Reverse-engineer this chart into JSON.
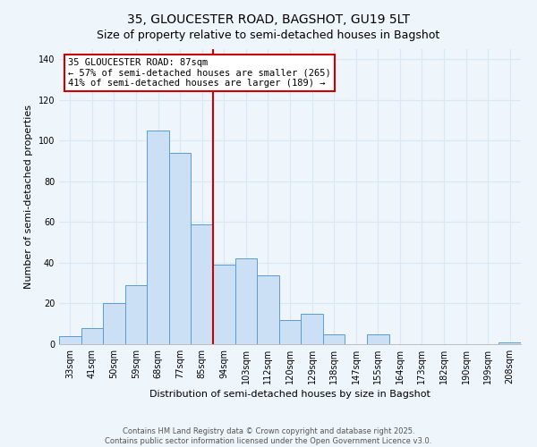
{
  "title": "35, GLOUCESTER ROAD, BAGSHOT, GU19 5LT",
  "subtitle": "Size of property relative to semi-detached houses in Bagshot",
  "xlabel": "Distribution of semi-detached houses by size in Bagshot",
  "ylabel": "Number of semi-detached properties",
  "bar_labels": [
    "33sqm",
    "41sqm",
    "50sqm",
    "59sqm",
    "68sqm",
    "77sqm",
    "85sqm",
    "94sqm",
    "103sqm",
    "112sqm",
    "120sqm",
    "129sqm",
    "138sqm",
    "147sqm",
    "155sqm",
    "164sqm",
    "173sqm",
    "182sqm",
    "190sqm",
    "199sqm",
    "208sqm"
  ],
  "bar_values": [
    4,
    8,
    20,
    29,
    105,
    94,
    59,
    39,
    42,
    34,
    12,
    15,
    5,
    0,
    5,
    0,
    0,
    0,
    0,
    0,
    1
  ],
  "bar_color": "#cce0f5",
  "bar_edge_color": "#5b9bd5",
  "property_line_bar_index": 6,
  "annotation_title": "35 GLOUCESTER ROAD: 87sqm",
  "annotation_line1": "← 57% of semi-detached houses are smaller (265)",
  "annotation_line2": "41% of semi-detached houses are larger (189) →",
  "annotation_box_color": "#ffffff",
  "annotation_box_edge": "#cc0000",
  "vline_color": "#cc0000",
  "ylim": [
    0,
    145
  ],
  "yticks": [
    0,
    20,
    40,
    60,
    80,
    100,
    120,
    140
  ],
  "footer_line1": "Contains HM Land Registry data © Crown copyright and database right 2025.",
  "footer_line2": "Contains public sector information licensed under the Open Government Licence v3.0.",
  "bg_color": "#eef5fb",
  "grid_color": "#d8e8f5",
  "title_fontsize": 10,
  "subtitle_fontsize": 9,
  "axis_label_fontsize": 8,
  "tick_fontsize": 7,
  "footer_fontsize": 6,
  "annotation_fontsize": 7.5
}
